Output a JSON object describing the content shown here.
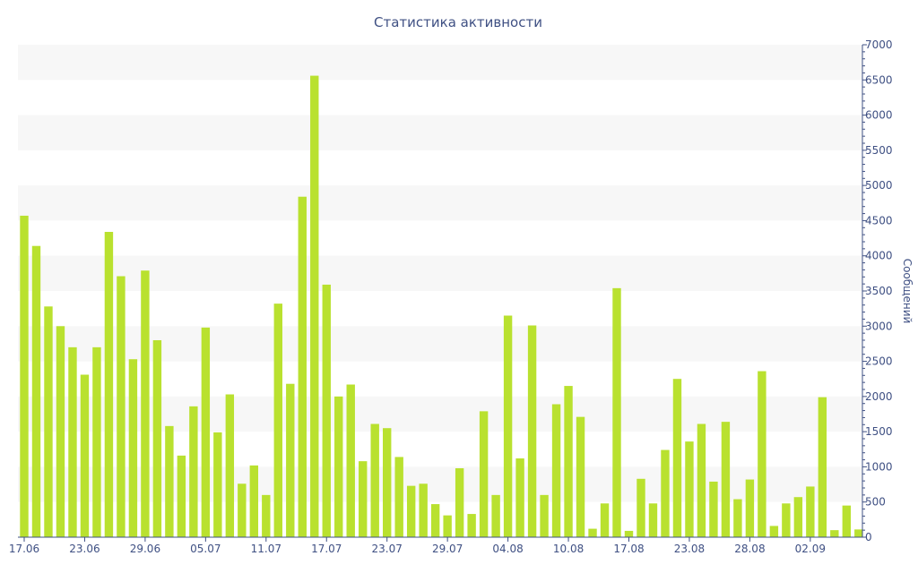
{
  "chart_data": {
    "type": "bar",
    "title": "Статистика активности",
    "ylabel": "Сообщений",
    "xlabel": "",
    "ylim": [
      0,
      7000
    ],
    "y_ticks": [
      0,
      500,
      1000,
      1500,
      2000,
      2500,
      3000,
      3500,
      4000,
      4500,
      5000,
      5500,
      6000,
      6500,
      7000
    ],
    "x_tick_labels": [
      {
        "label": "17.06",
        "index": 0
      },
      {
        "label": "23.06",
        "index": 5
      },
      {
        "label": "29.06",
        "index": 10
      },
      {
        "label": "05.07",
        "index": 15
      },
      {
        "label": "11.07",
        "index": 20
      },
      {
        "label": "17.07",
        "index": 25
      },
      {
        "label": "23.07",
        "index": 30
      },
      {
        "label": "29.07",
        "index": 35
      },
      {
        "label": "04.08",
        "index": 40
      },
      {
        "label": "10.08",
        "index": 45
      },
      {
        "label": "17.08",
        "index": 50
      },
      {
        "label": "23.08",
        "index": 55
      },
      {
        "label": "28.08",
        "index": 60
      },
      {
        "label": "02.09",
        "index": 65
      }
    ],
    "values": [
      4570,
      4140,
      3280,
      3000,
      2700,
      2310,
      2700,
      4340,
      3710,
      2530,
      3790,
      2800,
      1580,
      1160,
      1860,
      2980,
      1490,
      2030,
      760,
      1020,
      600,
      3320,
      2180,
      4840,
      6560,
      3590,
      2000,
      2170,
      1080,
      1610,
      1550,
      1140,
      730,
      760,
      470,
      310,
      980,
      330,
      1790,
      600,
      3150,
      1120,
      3010,
      600,
      1890,
      2150,
      1710,
      120,
      480,
      3540,
      90,
      830,
      480,
      1240,
      2250,
      1360,
      1610,
      790,
      1640,
      540,
      820,
      2360,
      160,
      480,
      570,
      720,
      1990,
      100,
      450,
      110
    ],
    "grid": "horizontal alternating bands",
    "y_axis_position": "right",
    "colors": {
      "bar": "#b9e12f",
      "band": "#f7f7f7",
      "axis": "#3f5083",
      "text": "#3f5083"
    }
  }
}
